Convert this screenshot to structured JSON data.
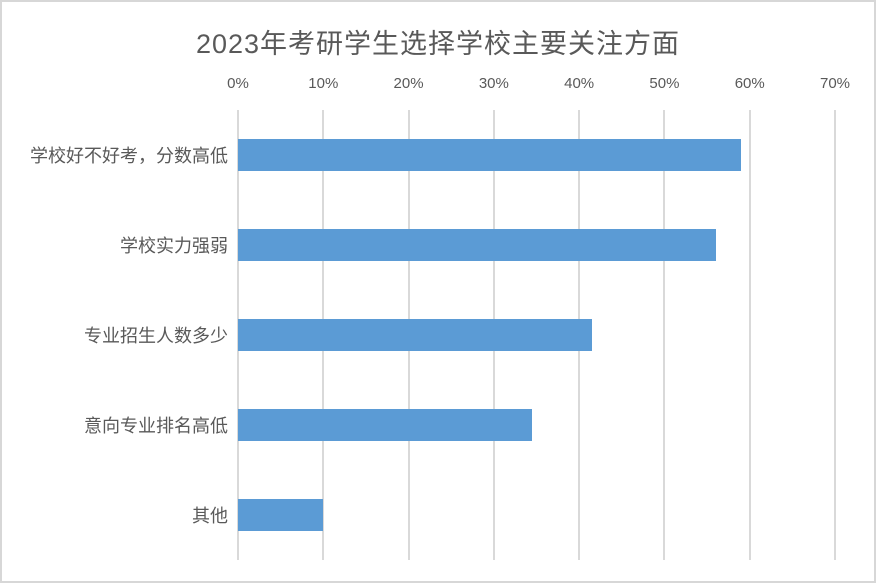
{
  "chart_data": {
    "type": "bar",
    "orientation": "horizontal",
    "title": "2023年考研学生选择学校主要关注方面",
    "categories": [
      "学校好不好考，分数高低",
      "学校实力强弱",
      "专业招生人数多少",
      "意向专业排名高低",
      "其他"
    ],
    "values": [
      59,
      56,
      41.5,
      34.5,
      10
    ],
    "value_unit": "%",
    "xlim": [
      0,
      70
    ],
    "x_tick_step": 10,
    "x_tick_labels": [
      "0%",
      "10%",
      "20%",
      "30%",
      "40%",
      "50%",
      "60%",
      "70%"
    ],
    "x_axis_position": "top",
    "grid": true,
    "legend": false,
    "bar_color": "#5B9BD5",
    "text_color": "#595959",
    "gridline_color": "#D9D9D9",
    "background_color": "#FFFFFF",
    "frame_border_color": "#D7D7D7"
  }
}
